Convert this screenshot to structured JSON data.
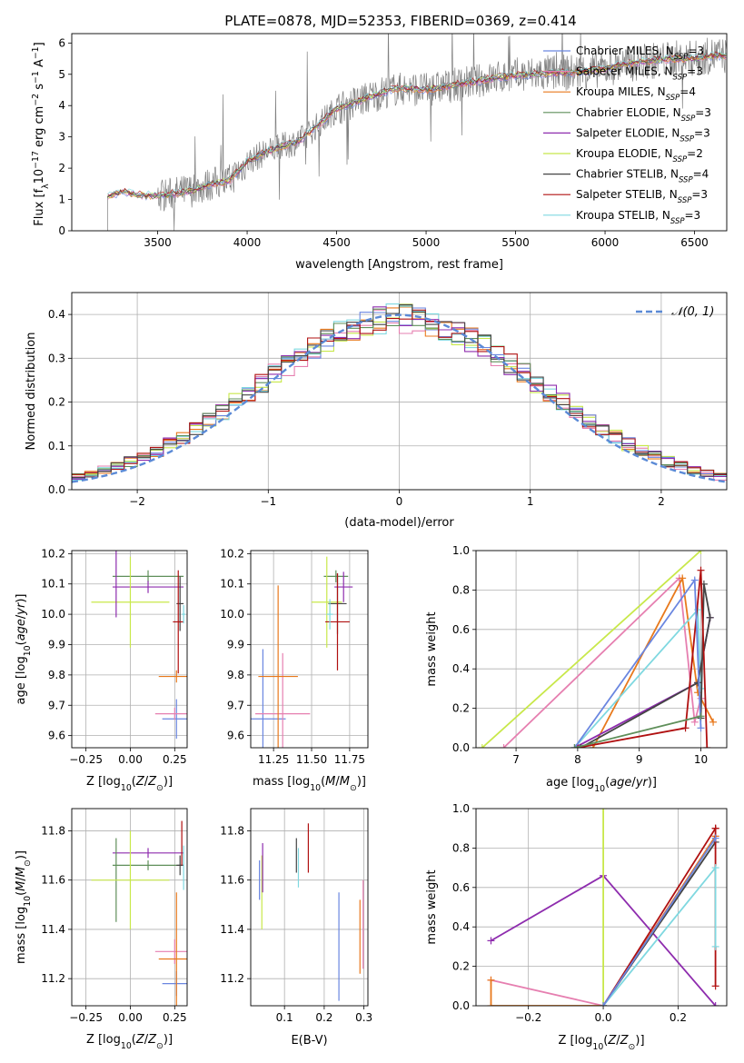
{
  "figure_title": "PLATE=0878, MJD=52353, FIBERID=0369, z=0.414",
  "models": [
    {
      "name": "Chabrier MILES",
      "nssp": "3",
      "color": "#6a86e0"
    },
    {
      "name": "Salpeter MILES",
      "nssp": "3",
      "color": "#e67fb0"
    },
    {
      "name": "Kroupa MILES",
      "nssp": "4",
      "color": "#e8791c"
    },
    {
      "name": "Chabrier ELODIE",
      "nssp": "3",
      "color": "#5f8f5a"
    },
    {
      "name": "Salpeter ELODIE",
      "nssp": "3",
      "color": "#8e2cae"
    },
    {
      "name": "Kroupa ELODIE",
      "nssp": "2",
      "color": "#c8e84a"
    },
    {
      "name": "Chabrier STELIB",
      "nssp": "4",
      "color": "#444444"
    },
    {
      "name": "Salpeter STELIB",
      "nssp": "3",
      "color": "#b01010"
    },
    {
      "name": "Kroupa STELIB",
      "nssp": "3",
      "color": "#7fd8e0"
    }
  ],
  "chart_data": [
    {
      "id": "spectrum",
      "type": "line",
      "title": "PLATE=0878, MJD=52353, FIBERID=0369, z=0.414",
      "xlabel": "wavelength [Angstrom, rest frame]",
      "ylabel": "Flux [f_λ 10^-17 erg cm^-2 s^-1 A^-1]",
      "xlim": [
        3020,
        6680
      ],
      "ylim": [
        0,
        6.3
      ],
      "xticks": [
        3500,
        4000,
        4500,
        5000,
        5500,
        6000,
        6500
      ],
      "yticks": [
        0,
        1,
        2,
        3,
        4,
        5,
        6
      ],
      "data_color": "#808080",
      "continuum_x": [
        3220,
        3300,
        3400,
        3500,
        3600,
        3700,
        3800,
        3900,
        4000,
        4100,
        4200,
        4300,
        4400,
        4500,
        4600,
        4700,
        4800,
        4900,
        5000,
        5100,
        5200,
        5300,
        5400,
        5500,
        5600,
        5700,
        5800,
        5900,
        6000,
        6100,
        6200,
        6300,
        6400,
        6500,
        6600,
        6680
      ],
      "continuum_y": [
        1.1,
        1.25,
        1.15,
        1.1,
        1.2,
        1.3,
        1.5,
        1.6,
        2.2,
        2.5,
        2.7,
        2.9,
        3.4,
        3.9,
        4.1,
        4.3,
        4.5,
        4.55,
        4.5,
        4.6,
        4.7,
        4.8,
        4.9,
        4.95,
        5.0,
        5.05,
        5.05,
        5.1,
        5.2,
        5.3,
        5.4,
        5.45,
        5.5,
        5.5,
        5.6,
        5.6
      ],
      "grid": false,
      "legend": "upper right"
    },
    {
      "id": "residuals",
      "type": "histogram",
      "xlabel": "(data-model)/error",
      "ylabel": "Normed distribution",
      "xlim": [
        -2.5,
        2.5
      ],
      "ylim": [
        0,
        0.45
      ],
      "xticks": [
        -2,
        -1,
        0,
        1,
        2
      ],
      "yticks": [
        0.0,
        0.1,
        0.2,
        0.3,
        0.4
      ],
      "bin_width": 0.1,
      "reference_label": "𝒩(0, 1)",
      "reference_color": "#5b8ad6",
      "grid": true,
      "legend": "upper right"
    },
    {
      "id": "age-vs-metallicity",
      "type": "errorbar",
      "xlabel": "Z [log10(Z/Z⊙)]",
      "ylabel": "age [log10(age/yr)]",
      "xlim": [
        -0.33,
        0.32
      ],
      "ylim": [
        9.56,
        10.21
      ],
      "xticks": [
        -0.25,
        0.0,
        0.25
      ],
      "yticks": [
        9.6,
        9.7,
        9.8,
        9.9,
        10.0,
        10.1,
        10.2
      ],
      "points": [
        {
          "x": 0.26,
          "y": 9.655,
          "xerr": 0.08,
          "yerr": 0.065,
          "model": 0
        },
        {
          "x": 0.25,
          "y": 9.672,
          "xerr": 0.11,
          "yerr": 0.02,
          "model": 1
        },
        {
          "x": 0.26,
          "y": 9.795,
          "xerr": 0.1,
          "yerr": 0.02,
          "model": 2
        },
        {
          "x": 0.1,
          "y": 10.125,
          "xerr": 0.2,
          "yerr": 0.02,
          "model": 3
        },
        {
          "x": 0.1,
          "y": 10.09,
          "xerr": 0.2,
          "yerr": 0.02,
          "model": 4
        },
        {
          "x": 0.0,
          "y": 10.04,
          "xerr": 0.22,
          "yerr": 0.15,
          "model": 5
        },
        {
          "x": 0.28,
          "y": 10.035,
          "xerr": 0.02,
          "yerr": 0.09,
          "model": 6
        },
        {
          "x": 0.27,
          "y": 9.975,
          "xerr": 0.03,
          "yerr": 0.17,
          "model": 7
        },
        {
          "x": 0.3,
          "y": 10.0,
          "xerr": 0.01,
          "yerr": 0.03,
          "model": 8
        },
        {
          "x": -0.08,
          "y": 10.1,
          "xerr": 0.0,
          "yerr": 0.11,
          "model": 4
        }
      ],
      "grid": true
    },
    {
      "id": "age-vs-mass",
      "type": "errorbar",
      "xlabel": "mass [log10(M/M⊙)]",
      "ylabel": "",
      "xlim": [
        11.1,
        11.87
      ],
      "ylim": [
        9.56,
        10.21
      ],
      "xticks": [
        11.25,
        11.5,
        11.75
      ],
      "yticks": [
        9.6,
        9.7,
        9.8,
        9.9,
        10.0,
        10.1,
        10.2
      ],
      "points": [
        {
          "x": 11.18,
          "y": 9.655,
          "xerr": 0.15,
          "yerr": 0.23,
          "model": 0
        },
        {
          "x": 11.31,
          "y": 9.672,
          "xerr": 0.18,
          "yerr": 0.2,
          "model": 1
        },
        {
          "x": 11.28,
          "y": 9.795,
          "xerr": 0.13,
          "yerr": 0.3,
          "model": 2
        },
        {
          "x": 11.66,
          "y": 10.125,
          "xerr": 0.08,
          "yerr": 0.02,
          "model": 3
        },
        {
          "x": 11.71,
          "y": 10.09,
          "xerr": 0.06,
          "yerr": 0.05,
          "model": 4
        },
        {
          "x": 11.6,
          "y": 10.04,
          "xerr": 0.1,
          "yerr": 0.15,
          "model": 5
        },
        {
          "x": 11.67,
          "y": 10.035,
          "xerr": 0.06,
          "yerr": 0.1,
          "model": 6
        },
        {
          "x": 11.67,
          "y": 9.975,
          "xerr": 0.08,
          "yerr": 0.16,
          "model": 7
        },
        {
          "x": 11.62,
          "y": 10.0,
          "xerr": 0.02,
          "yerr": 0.05,
          "model": 8
        }
      ],
      "grid": true
    },
    {
      "id": "weight-vs-age",
      "type": "line",
      "xlabel": "age [log10(age/yr)]",
      "ylabel": "mass weight",
      "xlim": [
        6.35,
        10.42
      ],
      "ylim": [
        0,
        1.0
      ],
      "xticks": [
        7,
        8,
        9,
        10
      ],
      "yticks": [
        0.0,
        0.2,
        0.4,
        0.6,
        0.8,
        1.0
      ],
      "series": [
        {
          "model": 5,
          "x": [
            6.45,
            10.0
          ],
          "y": [
            0.0,
            1.0
          ]
        },
        {
          "model": 1,
          "x": [
            6.8,
            9.65,
            9.9,
            10.0
          ],
          "y": [
            0.0,
            0.86,
            0.13,
            0.25
          ]
        },
        {
          "model": 2,
          "x": [
            8.25,
            9.7,
            9.95,
            10.2
          ],
          "y": [
            0.0,
            0.86,
            0.28,
            0.13
          ]
        },
        {
          "model": 8,
          "x": [
            7.95,
            9.95,
            10.0
          ],
          "y": [
            0.0,
            0.7,
            0.3
          ]
        },
        {
          "model": 4,
          "x": [
            7.95,
            9.95,
            10.15
          ],
          "y": [
            0.0,
            0.33,
            0.66
          ]
        },
        {
          "model": 6,
          "x": [
            8.05,
            9.95,
            10.15,
            10.05,
            10.0
          ],
          "y": [
            0.0,
            0.33,
            0.66,
            0.83,
            0.15
          ]
        },
        {
          "model": 7,
          "x": [
            8.0,
            9.75,
            10.0,
            10.1
          ],
          "y": [
            0.0,
            0.1,
            0.9,
            0.0
          ]
        },
        {
          "model": 0,
          "x": [
            7.95,
            9.9,
            10.0
          ],
          "y": [
            0.0,
            0.85,
            0.1
          ]
        },
        {
          "model": 3,
          "x": [
            7.95,
            10.0
          ],
          "y": [
            0.0,
            0.16
          ]
        }
      ],
      "grid": true
    },
    {
      "id": "mass-vs-metallicity",
      "type": "errorbar",
      "xlabel": "Z [log10(Z/Z⊙)]",
      "ylabel": "mass [log10(M/M⊙)]",
      "xlim": [
        -0.33,
        0.32
      ],
      "ylim": [
        11.09,
        11.89
      ],
      "xticks": [
        -0.25,
        0.0,
        0.25
      ],
      "yticks": [
        11.2,
        11.4,
        11.6,
        11.8
      ],
      "points": [
        {
          "x": 0.26,
          "y": 11.18,
          "xerr": 0.08,
          "yerr": 0.05,
          "model": 0
        },
        {
          "x": 0.25,
          "y": 11.31,
          "xerr": 0.11,
          "yerr": 0.05,
          "model": 1
        },
        {
          "x": 0.26,
          "y": 11.28,
          "xerr": 0.1,
          "yerr": 0.27,
          "model": 2
        },
        {
          "x": 0.1,
          "y": 11.66,
          "xerr": 0.2,
          "yerr": 0.02,
          "model": 3
        },
        {
          "x": 0.1,
          "y": 11.71,
          "xerr": 0.2,
          "yerr": 0.02,
          "model": 4
        },
        {
          "x": -0.08,
          "y": 11.6,
          "xerr": 0.0,
          "yerr": 0.17,
          "model": 3
        },
        {
          "x": 0.0,
          "y": 11.6,
          "xerr": 0.22,
          "yerr": 0.2,
          "model": 5
        },
        {
          "x": 0.28,
          "y": 11.66,
          "xerr": 0.02,
          "yerr": 0.04,
          "model": 6
        },
        {
          "x": 0.29,
          "y": 11.75,
          "xerr": 0.0,
          "yerr": 0.09,
          "model": 7
        },
        {
          "x": 0.3,
          "y": 11.65,
          "xerr": 0.0,
          "yerr": 0.09,
          "model": 8
        }
      ],
      "grid": true
    },
    {
      "id": "mass-vs-ebv",
      "type": "errorbar",
      "xlabel": "E(B-V)",
      "ylabel": "",
      "xlim": [
        0.015,
        0.31
      ],
      "ylim": [
        11.09,
        11.89
      ],
      "xticks": [
        0.1,
        0.2,
        0.3
      ],
      "yticks": [
        11.2,
        11.4,
        11.6,
        11.8
      ],
      "points": [
        {
          "x": 0.037,
          "y": 11.6,
          "xerr": 0,
          "yerr": 0.08,
          "model": 0
        },
        {
          "x": 0.043,
          "y": 11.55,
          "xerr": 0,
          "yerr": 0.15,
          "model": 5
        },
        {
          "x": 0.045,
          "y": 11.65,
          "xerr": 0,
          "yerr": 0.1,
          "model": 4
        },
        {
          "x": 0.13,
          "y": 11.7,
          "xerr": 0,
          "yerr": 0.07,
          "model": 6
        },
        {
          "x": 0.135,
          "y": 11.65,
          "xerr": 0,
          "yerr": 0.08,
          "model": 8
        },
        {
          "x": 0.16,
          "y": 11.73,
          "xerr": 0,
          "yerr": 0.1,
          "model": 7
        },
        {
          "x": 0.237,
          "y": 11.33,
          "xerr": 0,
          "yerr": 0.22,
          "model": 0
        },
        {
          "x": 0.29,
          "y": 11.37,
          "xerr": 0,
          "yerr": 0.15,
          "model": 2
        },
        {
          "x": 0.298,
          "y": 11.42,
          "xerr": 0,
          "yerr": 0.18,
          "model": 1
        }
      ],
      "grid": true
    },
    {
      "id": "weight-vs-metallicity",
      "type": "line",
      "xlabel": "Z [log10(Z/Z⊙)]",
      "ylabel": "mass weight",
      "xlim": [
        -0.34,
        0.33
      ],
      "ylim": [
        0,
        1.0
      ],
      "xticks": [
        -0.2,
        0.0,
        0.2
      ],
      "yticks": [
        0.0,
        0.2,
        0.4,
        0.6,
        0.8,
        1.0
      ],
      "series": [
        {
          "model": 4,
          "x": [
            -0.3,
            0.0,
            0.3
          ],
          "y": [
            0.33,
            0.66,
            0.0
          ]
        },
        {
          "model": 1,
          "x": [
            -0.3,
            0.0,
            0.3
          ],
          "y": [
            0.13,
            0.0,
            0.86
          ]
        },
        {
          "model": 2,
          "x": [
            -0.3,
            -0.3,
            0.0,
            0.3
          ],
          "y": [
            0.13,
            0.0,
            0.0,
            0.86
          ]
        },
        {
          "model": 6,
          "x": [
            0.0,
            0.3
          ],
          "y": [
            0.0,
            0.83
          ]
        },
        {
          "model": 7,
          "x": [
            0.0,
            0.3,
            0.3,
            0.3
          ],
          "y": [
            0.0,
            0.9,
            0.1,
            0.9
          ]
        },
        {
          "model": 8,
          "x": [
            0.0,
            0.3,
            0.3
          ],
          "y": [
            0.0,
            0.7,
            0.3
          ]
        },
        {
          "model": 5,
          "x": [
            0.0,
            0.0
          ],
          "y": [
            0.0,
            1.0
          ]
        },
        {
          "model": 0,
          "x": [
            0.0,
            0.3
          ],
          "y": [
            0.0,
            0.85
          ]
        }
      ],
      "grid": true
    }
  ]
}
